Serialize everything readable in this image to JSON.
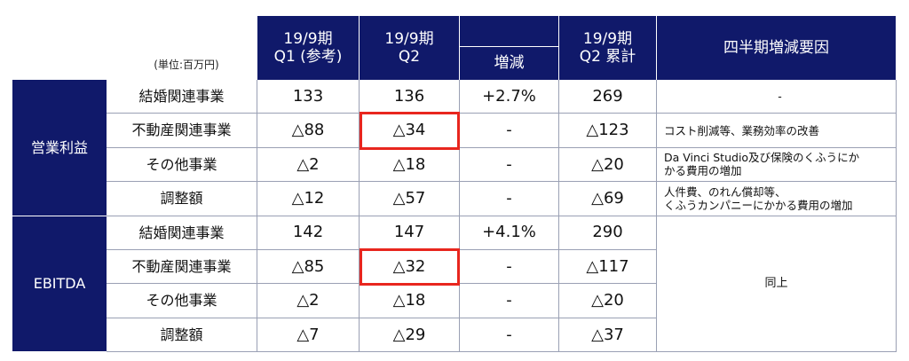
{
  "unit": "(単位:百万円)",
  "header": {
    "q1": [
      "19/9期",
      "Q1 (参考)"
    ],
    "q2": [
      "19/9期",
      "Q2"
    ],
    "change": "増減",
    "cumulative": [
      "19/9期",
      "Q2 累計"
    ],
    "reason": "四半期増減要因"
  },
  "groups": [
    {
      "name": "営業利益",
      "highlight_row": 1,
      "rows": [
        {
          "label": "結婚関連事業",
          "q1": "133",
          "q2": "136",
          "change": "+2.7%",
          "cumulative": "269",
          "reason": [
            "-"
          ]
        },
        {
          "label": "不動産関連事業",
          "q1": "△88",
          "q2": "△34",
          "change": "-",
          "cumulative": "△123",
          "reason": [
            "コスト削減等、業務効率の改善"
          ]
        },
        {
          "label": "その他事業",
          "q1": "△2",
          "q2": "△18",
          "change": "-",
          "cumulative": "△20",
          "reason": [
            "Da Vinci Studio及び保険のくふうにか",
            "かる費用の増加"
          ]
        },
        {
          "label": "調整額",
          "q1": "△12",
          "q2": "△57",
          "change": "-",
          "cumulative": "△69",
          "reason": [
            "人件費、のれん償却等、",
            "くふうカンパニーにかかる費用の増加"
          ]
        }
      ]
    },
    {
      "name": "EBITDA",
      "highlight_row": 1,
      "merged_reason": "同上",
      "rows": [
        {
          "label": "結婚関連事業",
          "q1": "142",
          "q2": "147",
          "change": "+4.1%",
          "cumulative": "290"
        },
        {
          "label": "不動産関連事業",
          "q1": "△85",
          "q2": "△32",
          "change": "-",
          "cumulative": "△117"
        },
        {
          "label": "その他事業",
          "q1": "△2",
          "q2": "△18",
          "change": "-",
          "cumulative": "△20"
        },
        {
          "label": "調整額",
          "q1": "△7",
          "q2": "△29",
          "change": "-",
          "cumulative": "△37"
        }
      ]
    }
  ]
}
